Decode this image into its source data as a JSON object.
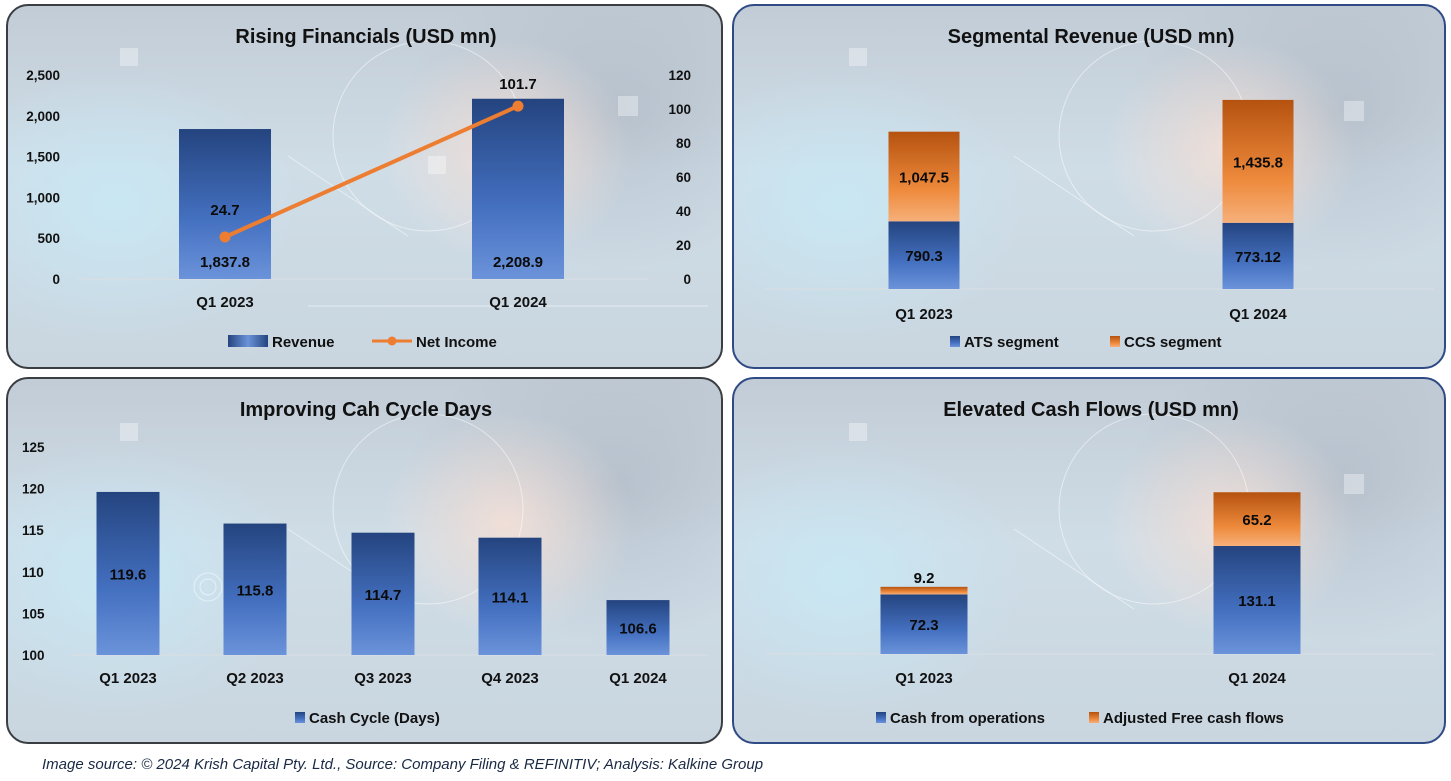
{
  "colors": {
    "blue_top": "#24447f",
    "blue_bottom": "#5b86d4",
    "orange_top": "#b5520f",
    "orange_bottom": "#f08a3e",
    "line_orange": "#ed7d31",
    "axis_line": "#d6dde4"
  },
  "chart_data": [
    {
      "id": "rising-financials",
      "type": "bar+line",
      "title": "Rising Financials (USD mn)",
      "categories": [
        "Q1 2023",
        "Q1 2024"
      ],
      "series": [
        {
          "name": "Revenue",
          "type": "bar",
          "axis": "left",
          "values": [
            1837.8,
            2208.9
          ],
          "labels": [
            "1,837.8",
            "2,208.9"
          ]
        },
        {
          "name": "Net Income",
          "type": "line",
          "axis": "right",
          "values": [
            24.7,
            101.7
          ],
          "labels": [
            "24.7",
            "101.7"
          ]
        }
      ],
      "left_axis": {
        "ylim": [
          0,
          2500
        ],
        "ticks": [
          "0",
          "500",
          "1,000",
          "1,500",
          "2,000",
          "2,500"
        ],
        "tick_values": [
          0,
          500,
          1000,
          1500,
          2000,
          2500
        ]
      },
      "right_axis": {
        "ylim": [
          0,
          120
        ],
        "ticks": [
          "0",
          "20",
          "40",
          "60",
          "80",
          "100",
          "120"
        ],
        "tick_values": [
          0,
          20,
          40,
          60,
          80,
          100,
          120
        ]
      },
      "legend": [
        "Revenue",
        "Net Income"
      ],
      "legend_position": "bottom",
      "grid": false
    },
    {
      "id": "segmental-revenue",
      "type": "stacked-bar",
      "title": "Segmental Revenue (USD mn)",
      "categories": [
        "Q1 2023",
        "Q1 2024"
      ],
      "series": [
        {
          "name": "ATS segment",
          "values": [
            790.3,
            773.12
          ],
          "labels": [
            "790.3",
            "773.12"
          ]
        },
        {
          "name": "CCS segment",
          "values": [
            1047.5,
            1435.8
          ],
          "labels": [
            "1,047.5",
            "1,435.8"
          ]
        }
      ],
      "ylim": [
        0,
        2500
      ],
      "legend": [
        "ATS segment",
        "CCS segment"
      ],
      "legend_position": "bottom",
      "grid": false
    },
    {
      "id": "cash-cycle-days",
      "type": "bar",
      "title": "Improving Cah Cycle Days",
      "categories": [
        "Q1 2023",
        "Q2 2023",
        "Q3 2023",
        "Q4 2023",
        "Q1 2024"
      ],
      "series": [
        {
          "name": "Cash Cycle (Days)",
          "values": [
            119.6,
            115.8,
            114.7,
            114.1,
            106.6
          ],
          "labels": [
            "119.6",
            "115.8",
            "114.7",
            "114.1",
            "106.6"
          ]
        }
      ],
      "ylim": [
        100,
        125
      ],
      "ticks": [
        "100",
        "105",
        "110",
        "115",
        "120",
        "125"
      ],
      "tick_values": [
        100,
        105,
        110,
        115,
        120,
        125
      ],
      "legend": [
        "Cash Cycle (Days)"
      ],
      "legend_position": "bottom",
      "grid": false
    },
    {
      "id": "elevated-cash-flows",
      "type": "stacked-bar",
      "title": "Elevated Cash Flows (USD mn)",
      "categories": [
        "Q1 2023",
        "Q1 2024"
      ],
      "series": [
        {
          "name": "Cash from operations",
          "values": [
            72.3,
            131.1
          ],
          "labels": [
            "72.3",
            "131.1"
          ]
        },
        {
          "name": "Adjusted Free cash flows",
          "values": [
            9.2,
            65.2
          ],
          "labels": [
            "9.2",
            "65.2"
          ]
        }
      ],
      "ylim": [
        0,
        250
      ],
      "legend": [
        "Cash from operations",
        "Adjusted Free cash flows"
      ],
      "legend_position": "bottom",
      "grid": false
    }
  ],
  "caption": "Image source: © 2024 Krish Capital Pty. Ltd., Source: Company Filing & REFINITIV; Analysis: Kalkine Group"
}
